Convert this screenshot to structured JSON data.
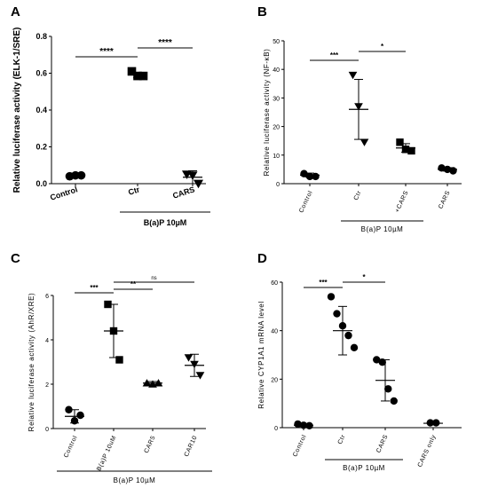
{
  "chart_data": [
    {
      "panel": "A",
      "type": "scatter",
      "ylabel": "Relative luciferase activity (ELK-1/SRE)",
      "ylim": [
        0,
        0.8
      ],
      "yticks": [
        "0.0",
        "0.2",
        "0.4",
        "0.6",
        "0.8"
      ],
      "categories": [
        "Control",
        "Ctr",
        "CARS"
      ],
      "group_bar": {
        "label": "B(a)P 10µM",
        "from": 1,
        "to": 2
      },
      "markers": [
        "circle",
        "square",
        "triangle-down"
      ],
      "points": [
        [
          0.04,
          0.045,
          0.045
        ],
        [
          0.61,
          0.585,
          0.585
        ],
        [
          0.05,
          0.045,
          0.0
        ]
      ],
      "mean": [
        0.045,
        0.59,
        0.035
      ],
      "sd": [
        0.003,
        0.015,
        0.035
      ],
      "significance": [
        {
          "from": 0,
          "to": 1,
          "label": "****"
        },
        {
          "from": 1,
          "to": 2,
          "label": "****"
        }
      ]
    },
    {
      "panel": "B",
      "type": "scatter",
      "ylabel": "Relative luciferase activity (NF-κB)",
      "ylim": [
        0,
        50
      ],
      "yticks": [
        "0",
        "10",
        "20",
        "30",
        "40",
        "50"
      ],
      "categories": [
        "Control",
        "Ctr",
        "+CARS",
        "CARS"
      ],
      "group_bar": {
        "label": "B(a)P 10µM",
        "from": 1,
        "to": 2
      },
      "markers": [
        "circle",
        "triangle-down",
        "square",
        "circle"
      ],
      "points": [
        [
          3.5,
          2.5,
          2.5
        ],
        [
          38,
          27,
          14.5
        ],
        [
          14.5,
          12,
          11.5
        ],
        [
          5.5,
          5,
          4.5
        ]
      ],
      "mean": [
        3.0,
        26.0,
        12.5,
        5.0
      ],
      "sd": [
        0.7,
        10.5,
        1.5,
        0.6
      ],
      "significance": [
        {
          "from": 0,
          "to": 1,
          "label": "***"
        },
        {
          "from": 1,
          "to": 2,
          "label": "*"
        }
      ]
    },
    {
      "panel": "C",
      "type": "scatter",
      "ylabel": "Relative luciferase activity (AhR/XRE)",
      "ylim": [
        0,
        6
      ],
      "yticks": [
        "0",
        "2",
        "4",
        "6"
      ],
      "categories": [
        "Control",
        "B(a)P 10uM",
        "CAR5",
        "CAR10"
      ],
      "group_bar": {
        "label": "B(a)P 10µM",
        "from": 0,
        "to": 3
      },
      "markers": [
        "circle",
        "square",
        "triangle-up",
        "triangle-down"
      ],
      "points": [
        [
          0.85,
          0.35,
          0.6
        ],
        [
          5.6,
          4.4,
          3.1
        ],
        [
          2.05,
          2.0,
          2.05
        ],
        [
          3.2,
          2.9,
          2.4
        ]
      ],
      "mean": [
        0.55,
        4.4,
        2.05,
        2.85
      ],
      "sd": [
        0.3,
        1.2,
        0.07,
        0.5
      ],
      "significance": [
        {
          "from": 0,
          "to": 1,
          "label": "***"
        },
        {
          "from": 1,
          "to": 2,
          "label": "**"
        },
        {
          "from": 1,
          "to": 3,
          "label": "ns"
        }
      ]
    },
    {
      "panel": "D",
      "type": "scatter",
      "ylabel": "Relative CYP1A1 mRNA level",
      "ylim": [
        0,
        60
      ],
      "yticks": [
        "0",
        "20",
        "40",
        "60"
      ],
      "categories": [
        "Control",
        "Ctr",
        "CARS",
        "CARS only"
      ],
      "group_bar": {
        "label": "B(a)P 10µM",
        "from": 1,
        "to": 2
      },
      "markers": [
        "circle",
        "circle",
        "circle",
        "circle"
      ],
      "points": [
        [
          1.5,
          1.0,
          0.8
        ],
        [
          54,
          47,
          42,
          38,
          33
        ],
        [
          28,
          27,
          16,
          11
        ],
        [
          2.0,
          2.0
        ]
      ],
      "mean": [
        1.0,
        40.0,
        19.5,
        1.8
      ],
      "sd": [
        0.4,
        10.0,
        8.5,
        0.3
      ],
      "significance": [
        {
          "from": 0,
          "to": 1,
          "label": "***"
        },
        {
          "from": 1,
          "to": 2,
          "label": "*"
        }
      ]
    }
  ],
  "panel_letters": [
    "A",
    "B",
    "C",
    "D"
  ]
}
